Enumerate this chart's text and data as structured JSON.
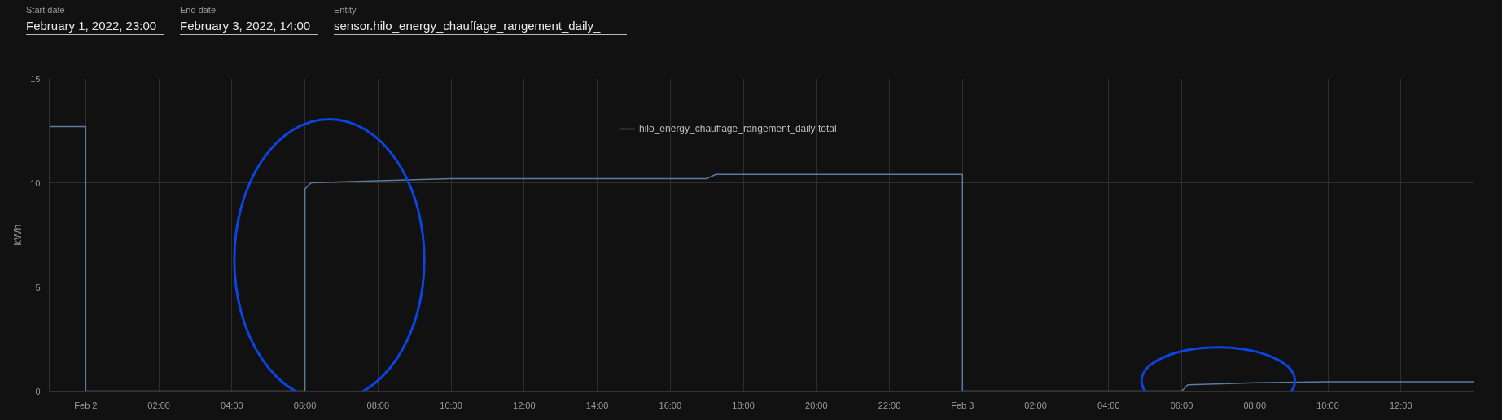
{
  "chart_data": {
    "type": "line",
    "ylabel": "kWh",
    "legend": "top",
    "grid": true,
    "line_style": "solid",
    "marker": "none",
    "annotations": [
      "Start date",
      "February 1, 2022, 23:00",
      "End date",
      "February 3, 2022, 14:00",
      "Entity",
      "sensor.hilo_energy_chauffage_rangement_daily_"
    ],
    "x": [
      "2022-02-01T23:00",
      "2022-02-02T00:00",
      "2022-02-02T00:00",
      "2022-02-02T06:00",
      "2022-02-02T06:00",
      "2022-02-02T06:10",
      "2022-02-02T08:00",
      "2022-02-02T10:00",
      "2022-02-02T17:00",
      "2022-02-02T17:15",
      "2022-02-03T00:00",
      "2022-02-03T00:00",
      "2022-02-03T06:00",
      "2022-02-03T06:10",
      "2022-02-03T08:00",
      "2022-02-03T10:00",
      "2022-02-03T14:00"
    ],
    "series": [
      {
        "name": "hilo_energy_chauffage_rangement_daily total",
        "color": "#5b7ba0",
        "values": [
          12.7,
          12.7,
          0,
          0,
          9.7,
          10.0,
          10.1,
          10.2,
          10.2,
          10.4,
          10.4,
          0,
          0,
          0.3,
          0.4,
          0.45,
          0.45
        ]
      }
    ],
    "xlim": [
      "2022-02-01T23:00",
      "2022-02-03T14:00"
    ],
    "xticks": [
      {
        "value": "2022-02-02T00:00",
        "label": "Feb 2"
      },
      {
        "value": "2022-02-02T02:00",
        "label": "02:00"
      },
      {
        "value": "2022-02-02T04:00",
        "label": "04:00"
      },
      {
        "value": "2022-02-02T06:00",
        "label": "06:00"
      },
      {
        "value": "2022-02-02T08:00",
        "label": "08:00"
      },
      {
        "value": "2022-02-02T10:00",
        "label": "10:00"
      },
      {
        "value": "2022-02-02T12:00",
        "label": "12:00"
      },
      {
        "value": "2022-02-02T14:00",
        "label": "14:00"
      },
      {
        "value": "2022-02-02T16:00",
        "label": "16:00"
      },
      {
        "value": "2022-02-02T18:00",
        "label": "18:00"
      },
      {
        "value": "2022-02-02T20:00",
        "label": "20:00"
      },
      {
        "value": "2022-02-02T22:00",
        "label": "22:00"
      },
      {
        "value": "2022-02-03T00:00",
        "label": "Feb 3"
      },
      {
        "value": "2022-02-03T02:00",
        "label": "02:00"
      },
      {
        "value": "2022-02-03T04:00",
        "label": "04:00"
      },
      {
        "value": "2022-02-03T06:00",
        "label": "06:00"
      },
      {
        "value": "2022-02-03T08:00",
        "label": "08:00"
      },
      {
        "value": "2022-02-03T10:00",
        "label": "10:00"
      },
      {
        "value": "2022-02-03T12:00",
        "label": "12:00"
      }
    ],
    "ylim": [
      0,
      15
    ],
    "yticks": [
      0,
      5,
      10,
      15
    ]
  }
}
